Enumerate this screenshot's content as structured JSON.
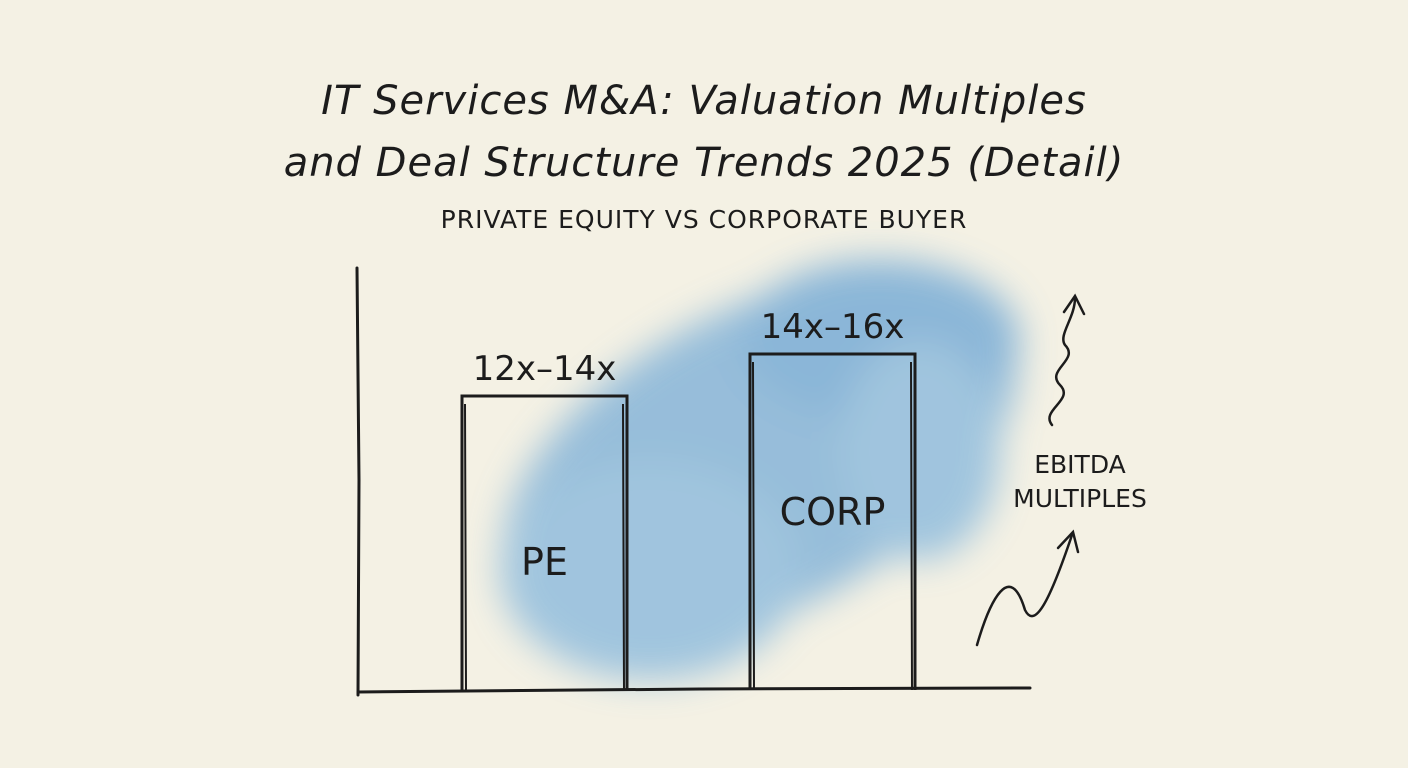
{
  "chart_data": {
    "type": "bar",
    "title": "IT Services M&A: Valuation Multiples and Deal Structure Trends 2025 (Detail)",
    "title_lines": [
      "IT Services M&A: Valuation Multiples",
      "and Deal Structure Trends 2025 (Detail)"
    ],
    "subtitle": "Private Equity vs Corporate Buyer",
    "categories": [
      "PE",
      "CORP"
    ],
    "ranges": [
      [
        12,
        14
      ],
      [
        14,
        16
      ]
    ],
    "data_labels": [
      "12x–14x",
      "14x–16x"
    ],
    "xlabel": "",
    "ylabel": "",
    "ylim": [
      0,
      20
    ],
    "grid": false,
    "annotation": [
      "EBITDA",
      "MULTIPLES"
    ],
    "colors": {
      "background": "#f4f1e4",
      "wash": "#6fa8d6",
      "ink": "#1c1c1c"
    }
  }
}
